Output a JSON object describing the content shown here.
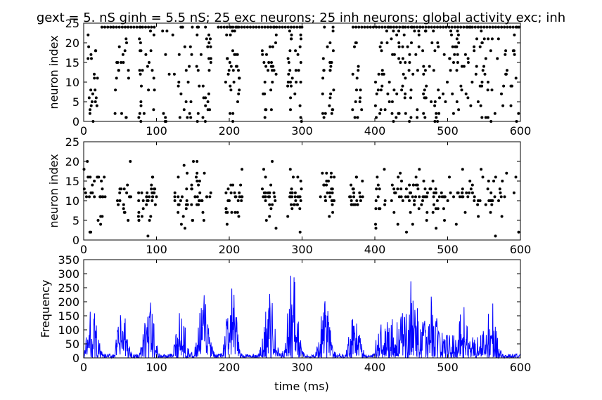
{
  "chart_data": [
    {
      "type": "scatter",
      "title": "gext = 5. nS ginh = 5.5 nS; 25 exc neurons; 25 inh neurons; global activity exc; inh",
      "xlabel": "",
      "ylabel": "neuron index",
      "xlim": [
        0,
        600
      ],
      "ylim": [
        0,
        25
      ],
      "xticks": [
        "0",
        "100",
        "200",
        "300",
        "400",
        "500",
        "600"
      ],
      "yticks": [
        "0",
        "5",
        "10",
        "15",
        "20",
        "25"
      ],
      "marker_color": "#000000",
      "bursts": [
        {
          "t0": 5,
          "t1": 22,
          "n": 22
        },
        {
          "t0": 40,
          "t1": 62,
          "n": 20
        },
        {
          "t0": 75,
          "t1": 98,
          "n": 26
        },
        {
          "t0": 105,
          "t1": 125,
          "n": 10
        },
        {
          "t0": 130,
          "t1": 150,
          "n": 20
        },
        {
          "t0": 155,
          "t1": 175,
          "n": 30
        },
        {
          "t0": 195,
          "t1": 215,
          "n": 32
        },
        {
          "t0": 245,
          "t1": 265,
          "n": 28
        },
        {
          "t0": 280,
          "t1": 300,
          "n": 32
        },
        {
          "t0": 328,
          "t1": 345,
          "n": 26
        },
        {
          "t0": 368,
          "t1": 385,
          "n": 16
        },
        {
          "t0": 400,
          "t1": 560,
          "n": 170
        },
        {
          "t0": 560,
          "t1": 600,
          "n": 24
        }
      ],
      "top_row_spikes": {
        "neuron": 24,
        "ranges": [
          [
            25,
            100
          ],
          [
            185,
            300
          ],
          [
            370,
            600
          ]
        ],
        "step": 4
      }
    },
    {
      "type": "scatter",
      "title": "",
      "xlabel": "",
      "ylabel": "neuron index",
      "xlim": [
        0,
        600
      ],
      "ylim": [
        0,
        25
      ],
      "xticks": [
        "0",
        "100",
        "200",
        "300",
        "400",
        "500",
        "600"
      ],
      "yticks": [
        "0",
        "5",
        "10",
        "15",
        "20",
        "25"
      ],
      "marker_color": "#000000",
      "bursts": [
        {
          "t0": 0,
          "t1": 30,
          "n": 30
        },
        {
          "t0": 45,
          "t1": 65,
          "n": 18
        },
        {
          "t0": 75,
          "t1": 100,
          "n": 34
        },
        {
          "t0": 125,
          "t1": 175,
          "n": 50
        },
        {
          "t0": 195,
          "t1": 220,
          "n": 28
        },
        {
          "t0": 245,
          "t1": 265,
          "n": 24
        },
        {
          "t0": 280,
          "t1": 300,
          "n": 28
        },
        {
          "t0": 325,
          "t1": 345,
          "n": 26
        },
        {
          "t0": 365,
          "t1": 385,
          "n": 22
        },
        {
          "t0": 400,
          "t1": 600,
          "n": 140
        }
      ]
    },
    {
      "type": "line",
      "title": "",
      "xlabel": "time (ms)",
      "ylabel": "Frequency",
      "xlim": [
        0,
        600
      ],
      "ylim": [
        0,
        350
      ],
      "xticks": [
        "0",
        "100",
        "200",
        "300",
        "400",
        "500",
        "600"
      ],
      "yticks": [
        "0",
        "50",
        "100",
        "150",
        "200",
        "250",
        "300",
        "350"
      ],
      "line_color": "#0000ff",
      "peaks": [
        {
          "t": 12,
          "v": 190
        },
        {
          "t": 53,
          "v": 175
        },
        {
          "t": 90,
          "v": 210
        },
        {
          "t": 135,
          "v": 200
        },
        {
          "t": 165,
          "v": 240
        },
        {
          "t": 203,
          "v": 270
        },
        {
          "t": 255,
          "v": 240
        },
        {
          "t": 287,
          "v": 330
        },
        {
          "t": 332,
          "v": 220
        },
        {
          "t": 372,
          "v": 200
        },
        {
          "t": 452,
          "v": 310
        },
        {
          "t": 480,
          "v": 250
        },
        {
          "t": 520,
          "v": 210
        },
        {
          "t": 560,
          "v": 215
        }
      ]
    }
  ]
}
